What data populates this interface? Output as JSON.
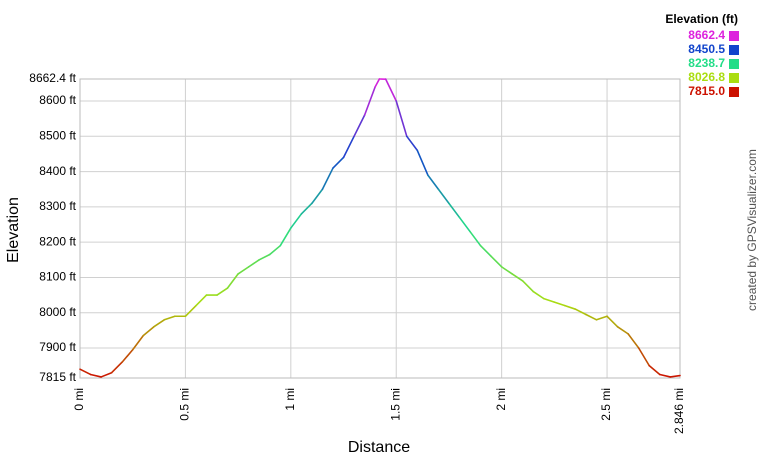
{
  "chart_data": {
    "type": "line",
    "y_label": "Elevation",
    "x_label": "Distance",
    "credit": "created by GPSVisualizer.com",
    "legend_title": "Elevation (ft)",
    "color_scale": [
      {
        "value": 8662.4,
        "color": "#dd22dd"
      },
      {
        "value": 8450.5,
        "color": "#1144cc"
      },
      {
        "value": 8238.7,
        "color": "#22dd88"
      },
      {
        "value": 8026.8,
        "color": "#aadd11"
      },
      {
        "value": 7815,
        "label": "7815.0",
        "color": "#cc1100"
      }
    ],
    "grid": true,
    "x": [
      0,
      0.05,
      0.1,
      0.15,
      0.2,
      0.25,
      0.3,
      0.35,
      0.4,
      0.45,
      0.5,
      0.55,
      0.6,
      0.65,
      0.7,
      0.75,
      0.8,
      0.85,
      0.9,
      0.95,
      1.0,
      1.05,
      1.1,
      1.15,
      1.2,
      1.25,
      1.3,
      1.35,
      1.4,
      1.42,
      1.45,
      1.5,
      1.55,
      1.6,
      1.65,
      1.7,
      1.75,
      1.8,
      1.85,
      1.9,
      1.95,
      2.0,
      2.05,
      2.1,
      2.15,
      2.2,
      2.25,
      2.3,
      2.35,
      2.4,
      2.45,
      2.5,
      2.55,
      2.6,
      2.65,
      2.7,
      2.75,
      2.8,
      2.846
    ],
    "values": [
      7840,
      7825,
      7818,
      7830,
      7860,
      7895,
      7935,
      7960,
      7980,
      7990,
      7990,
      8020,
      8050,
      8050,
      8070,
      8110,
      8130,
      8150,
      8165,
      8190,
      8240,
      8280,
      8310,
      8350,
      8410,
      8440,
      8500,
      8560,
      8640,
      8662.4,
      8662,
      8600,
      8500,
      8460,
      8390,
      8350,
      8310,
      8270,
      8230,
      8190,
      8160,
      8130,
      8110,
      8090,
      8060,
      8040,
      8030,
      8020,
      8010,
      7995,
      7980,
      7990,
      7960,
      7940,
      7900,
      7850,
      7825,
      7818,
      7822
    ],
    "xlim": [
      0,
      2.846
    ],
    "ylim": [
      7815,
      8662.4
    ],
    "xticks": [
      {
        "value": 0,
        "label": "0 mi"
      },
      {
        "value": 0.5,
        "label": "0.5 mi"
      },
      {
        "value": 1,
        "label": "1 mi"
      },
      {
        "value": 1.5,
        "label": "1.5 mi"
      },
      {
        "value": 2,
        "label": "2 mi"
      },
      {
        "value": 2.5,
        "label": "2.5 mi"
      },
      {
        "value": 2.846,
        "label": "2.846 mi"
      }
    ],
    "yticks": [
      {
        "value": 7815,
        "label": "7815 ft"
      },
      {
        "value": 7900,
        "label": "7900 ft"
      },
      {
        "value": 8000,
        "label": "8000 ft"
      },
      {
        "value": 8100,
        "label": "8100 ft"
      },
      {
        "value": 8200,
        "label": "8200 ft"
      },
      {
        "value": 8300,
        "label": "8300 ft"
      },
      {
        "value": 8400,
        "label": "8400 ft"
      },
      {
        "value": 8500,
        "label": "8500 ft"
      },
      {
        "value": 8600,
        "label": "8600 ft"
      },
      {
        "value": 8662.4,
        "label": "8662.4 ft"
      }
    ]
  }
}
